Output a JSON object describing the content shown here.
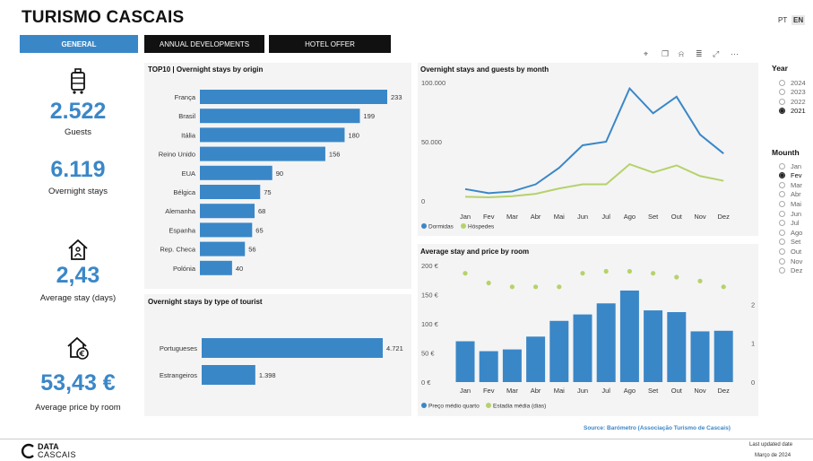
{
  "title": "TURISMO CASCAIS",
  "languages": {
    "pt": "PT",
    "en": "EN"
  },
  "tabs": [
    "GENERAL",
    "ANNUAL DEVELOPMENTS",
    "HOTEL OFFER"
  ],
  "kpis": {
    "guests": {
      "value": "2.522",
      "label": "Guests"
    },
    "overnight": {
      "value": "6.119",
      "label": "Overnight stays"
    },
    "avg_stay": {
      "value": "2,43",
      "label": "Average stay (days)"
    },
    "avg_price": {
      "value": "53,43 €",
      "label": "Average price by room"
    }
  },
  "icons": [
    "luggage-icon",
    "house-icon",
    "house-euro-icon"
  ],
  "panels": {
    "top10": "TOP10 | Overnight stays by origin",
    "tourist": "Overnight stays by type of tourist",
    "monthly": "Overnight stays and guests by month",
    "price": "Average stay and price by room"
  },
  "slicers": {
    "year_title": "Year",
    "years": [
      "2024",
      "2023",
      "2022",
      "2021"
    ],
    "year_selected": "2021",
    "month_title": "Mounth",
    "months": [
      "Jan",
      "Fev",
      "Mar",
      "Abr",
      "Mai",
      "Jun",
      "Jul",
      "Ago",
      "Set",
      "Out",
      "Nov",
      "Dez"
    ],
    "month_selected": "Fev"
  },
  "source": "Source: Barómetro (Associação Turismo de Cascais)",
  "footer": {
    "logo_line1": "DATA",
    "logo_line2": "CASCAIS",
    "updated_label": "Last updated date",
    "updated_value": "Março de 2024"
  },
  "colors": {
    "accent": "#3a87c8",
    "green": "#b5d26b",
    "dark": "#111111"
  },
  "chart_data": [
    {
      "type": "bar",
      "orientation": "horizontal",
      "title": "TOP10 | Overnight stays by origin",
      "categories": [
        "França",
        "Brasil",
        "Itália",
        "Reino Unido",
        "EUA",
        "Bélgica",
        "Alemanha",
        "Espanha",
        "Rep. Checa",
        "Polónia"
      ],
      "values": [
        233,
        199,
        180,
        156,
        90,
        75,
        68,
        65,
        56,
        40
      ],
      "value_labels": [
        "233",
        "199",
        "180",
        "156",
        "90",
        "75",
        "68",
        "65",
        "56",
        "40"
      ]
    },
    {
      "type": "bar",
      "orientation": "horizontal",
      "title": "Overnight stays by type of tourist",
      "categories": [
        "Portugueses",
        "Estrangeiros"
      ],
      "values": [
        4721,
        1398
      ],
      "value_labels": [
        "4.721",
        "1.398"
      ]
    },
    {
      "type": "line",
      "title": "Overnight stays and guests by month",
      "categories": [
        "Jan",
        "Fev",
        "Mar",
        "Abr",
        "Mai",
        "Jun",
        "Jul",
        "Ago",
        "Set",
        "Out",
        "Nov",
        "Dez"
      ],
      "y_ticks": [
        "0",
        "50.000",
        "100.000"
      ],
      "ylim": [
        0,
        100000
      ],
      "series": [
        {
          "name": "Dormidas",
          "color": "#3a87c8",
          "values": [
            10000,
            6500,
            8000,
            14000,
            28000,
            47000,
            50000,
            95000,
            74000,
            88000,
            56000,
            40000
          ]
        },
        {
          "name": "Hóspedes",
          "color": "#b5d26b",
          "values": [
            3500,
            3000,
            4000,
            6000,
            10500,
            14000,
            14000,
            31000,
            24000,
            30000,
            21000,
            17000
          ]
        }
      ],
      "legend": "bottom-left"
    },
    {
      "type": "bar",
      "title": "Average stay and price by room",
      "categories": [
        "Jan",
        "Fev",
        "Mar",
        "Abr",
        "Mai",
        "Jun",
        "Jul",
        "Ago",
        "Set",
        "Out",
        "Nov",
        "Dez"
      ],
      "y_ticks_left": [
        "0 €",
        "50 €",
        "100 €",
        "150 €",
        "200 €"
      ],
      "ylim_left": [
        0,
        200
      ],
      "y_ticks_right": [
        "0",
        "1",
        "2"
      ],
      "ylim_right": [
        0,
        3
      ],
      "series": [
        {
          "name": "Preço médio quarto",
          "color": "#3a87c8",
          "type": "bar",
          "axis": "left",
          "values": [
            70,
            53,
            56,
            78,
            105,
            116,
            135,
            157,
            123,
            120,
            87,
            88
          ]
        },
        {
          "name": "Estadia média (dias)",
          "color": "#b5d26b",
          "type": "scatter",
          "axis": "right",
          "values": [
            2.8,
            2.55,
            2.45,
            2.45,
            2.45,
            2.8,
            2.85,
            2.85,
            2.8,
            2.7,
            2.6,
            2.45
          ]
        }
      ],
      "legend": "bottom-left"
    }
  ]
}
